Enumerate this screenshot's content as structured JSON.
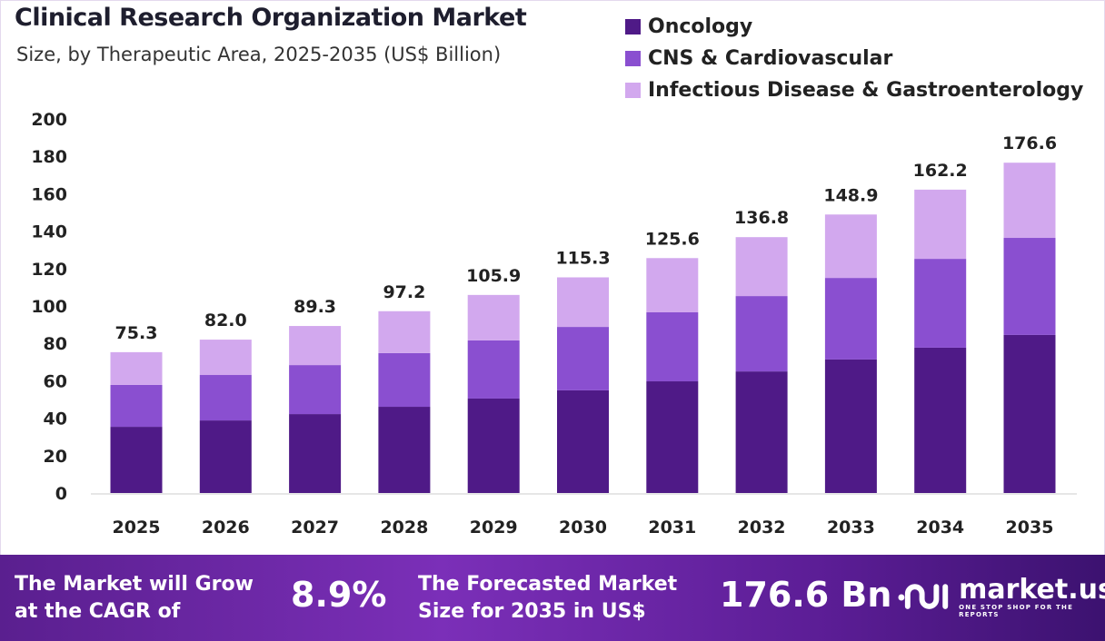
{
  "chart_data": {
    "type": "bar",
    "stacked": true,
    "title": "Clinical Research Organization Market",
    "subtitle": "Size, by Therapeutic Area, 2025-2035 (US$ Billion)",
    "categories": [
      "2025",
      "2026",
      "2027",
      "2028",
      "2029",
      "2030",
      "2031",
      "2032",
      "2033",
      "2034",
      "2035"
    ],
    "series": [
      {
        "name": "Oncology",
        "color": "#4f1a87",
        "values": [
          35.4,
          38.8,
          42.2,
          46.1,
          50.5,
          54.9,
          59.7,
          65.0,
          71.4,
          77.7,
          84.5
        ]
      },
      {
        "name": "CNS & Cardiovascular",
        "color": "#8a4fd0",
        "values": [
          22.4,
          24.3,
          26.2,
          28.7,
          31.1,
          33.9,
          36.9,
          40.3,
          43.6,
          47.5,
          51.9
        ]
      },
      {
        "name": "Infectious Disease & Gastroenterology",
        "color": "#d2a8ee",
        "values": [
          17.5,
          18.9,
          20.9,
          22.4,
          24.3,
          26.5,
          29.0,
          31.5,
          33.9,
          37.0,
          40.2
        ]
      }
    ],
    "totals": [
      "75.3",
      "82.0",
      "89.3",
      "97.2",
      "105.9",
      "115.3",
      "125.6",
      "136.8",
      "148.9",
      "162.2",
      "176.6"
    ],
    "yticks": [
      0,
      20,
      40,
      60,
      80,
      100,
      120,
      140,
      160,
      180,
      200
    ],
    "ylim": [
      0,
      200
    ],
    "grid": false,
    "legend_position": "top-right"
  },
  "footer": {
    "cagr_label_1": "The Market will Grow",
    "cagr_label_2": "at the CAGR of",
    "cagr_value": "8.9%",
    "forecast_label_1": "The Forecasted Market",
    "forecast_label_2": "Size for 2035 in US$",
    "forecast_value": "176.6 Bn"
  },
  "logo": {
    "name": "market.us",
    "tagline": "ONE STOP SHOP FOR THE REPORTS"
  }
}
